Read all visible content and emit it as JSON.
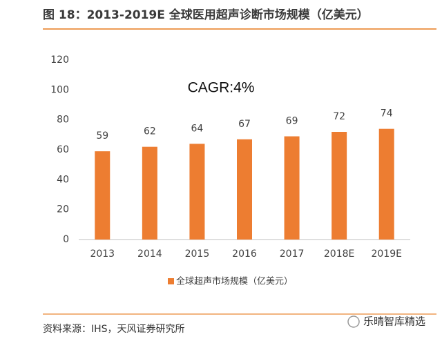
{
  "chart_data": {
    "type": "bar",
    "title": "图 18：2013-2019E 全球医用超声诊断市场规模（亿美元）",
    "annotation": "CAGR:4%",
    "categories": [
      "2013",
      "2014",
      "2015",
      "2016",
      "2017",
      "2018E",
      "2019E"
    ],
    "series": [
      {
        "name": "全球超声市场规模（亿美元）",
        "color": "#ed7d31",
        "values": [
          59,
          62,
          64,
          67,
          69,
          72,
          74
        ]
      }
    ],
    "ylim": [
      0,
      120
    ],
    "yticks": [
      0,
      20,
      40,
      60,
      80,
      100,
      120
    ],
    "grid": false,
    "source": "资料来源：IHS，天风证券研究所"
  },
  "watermark": "乐晴智库精选"
}
